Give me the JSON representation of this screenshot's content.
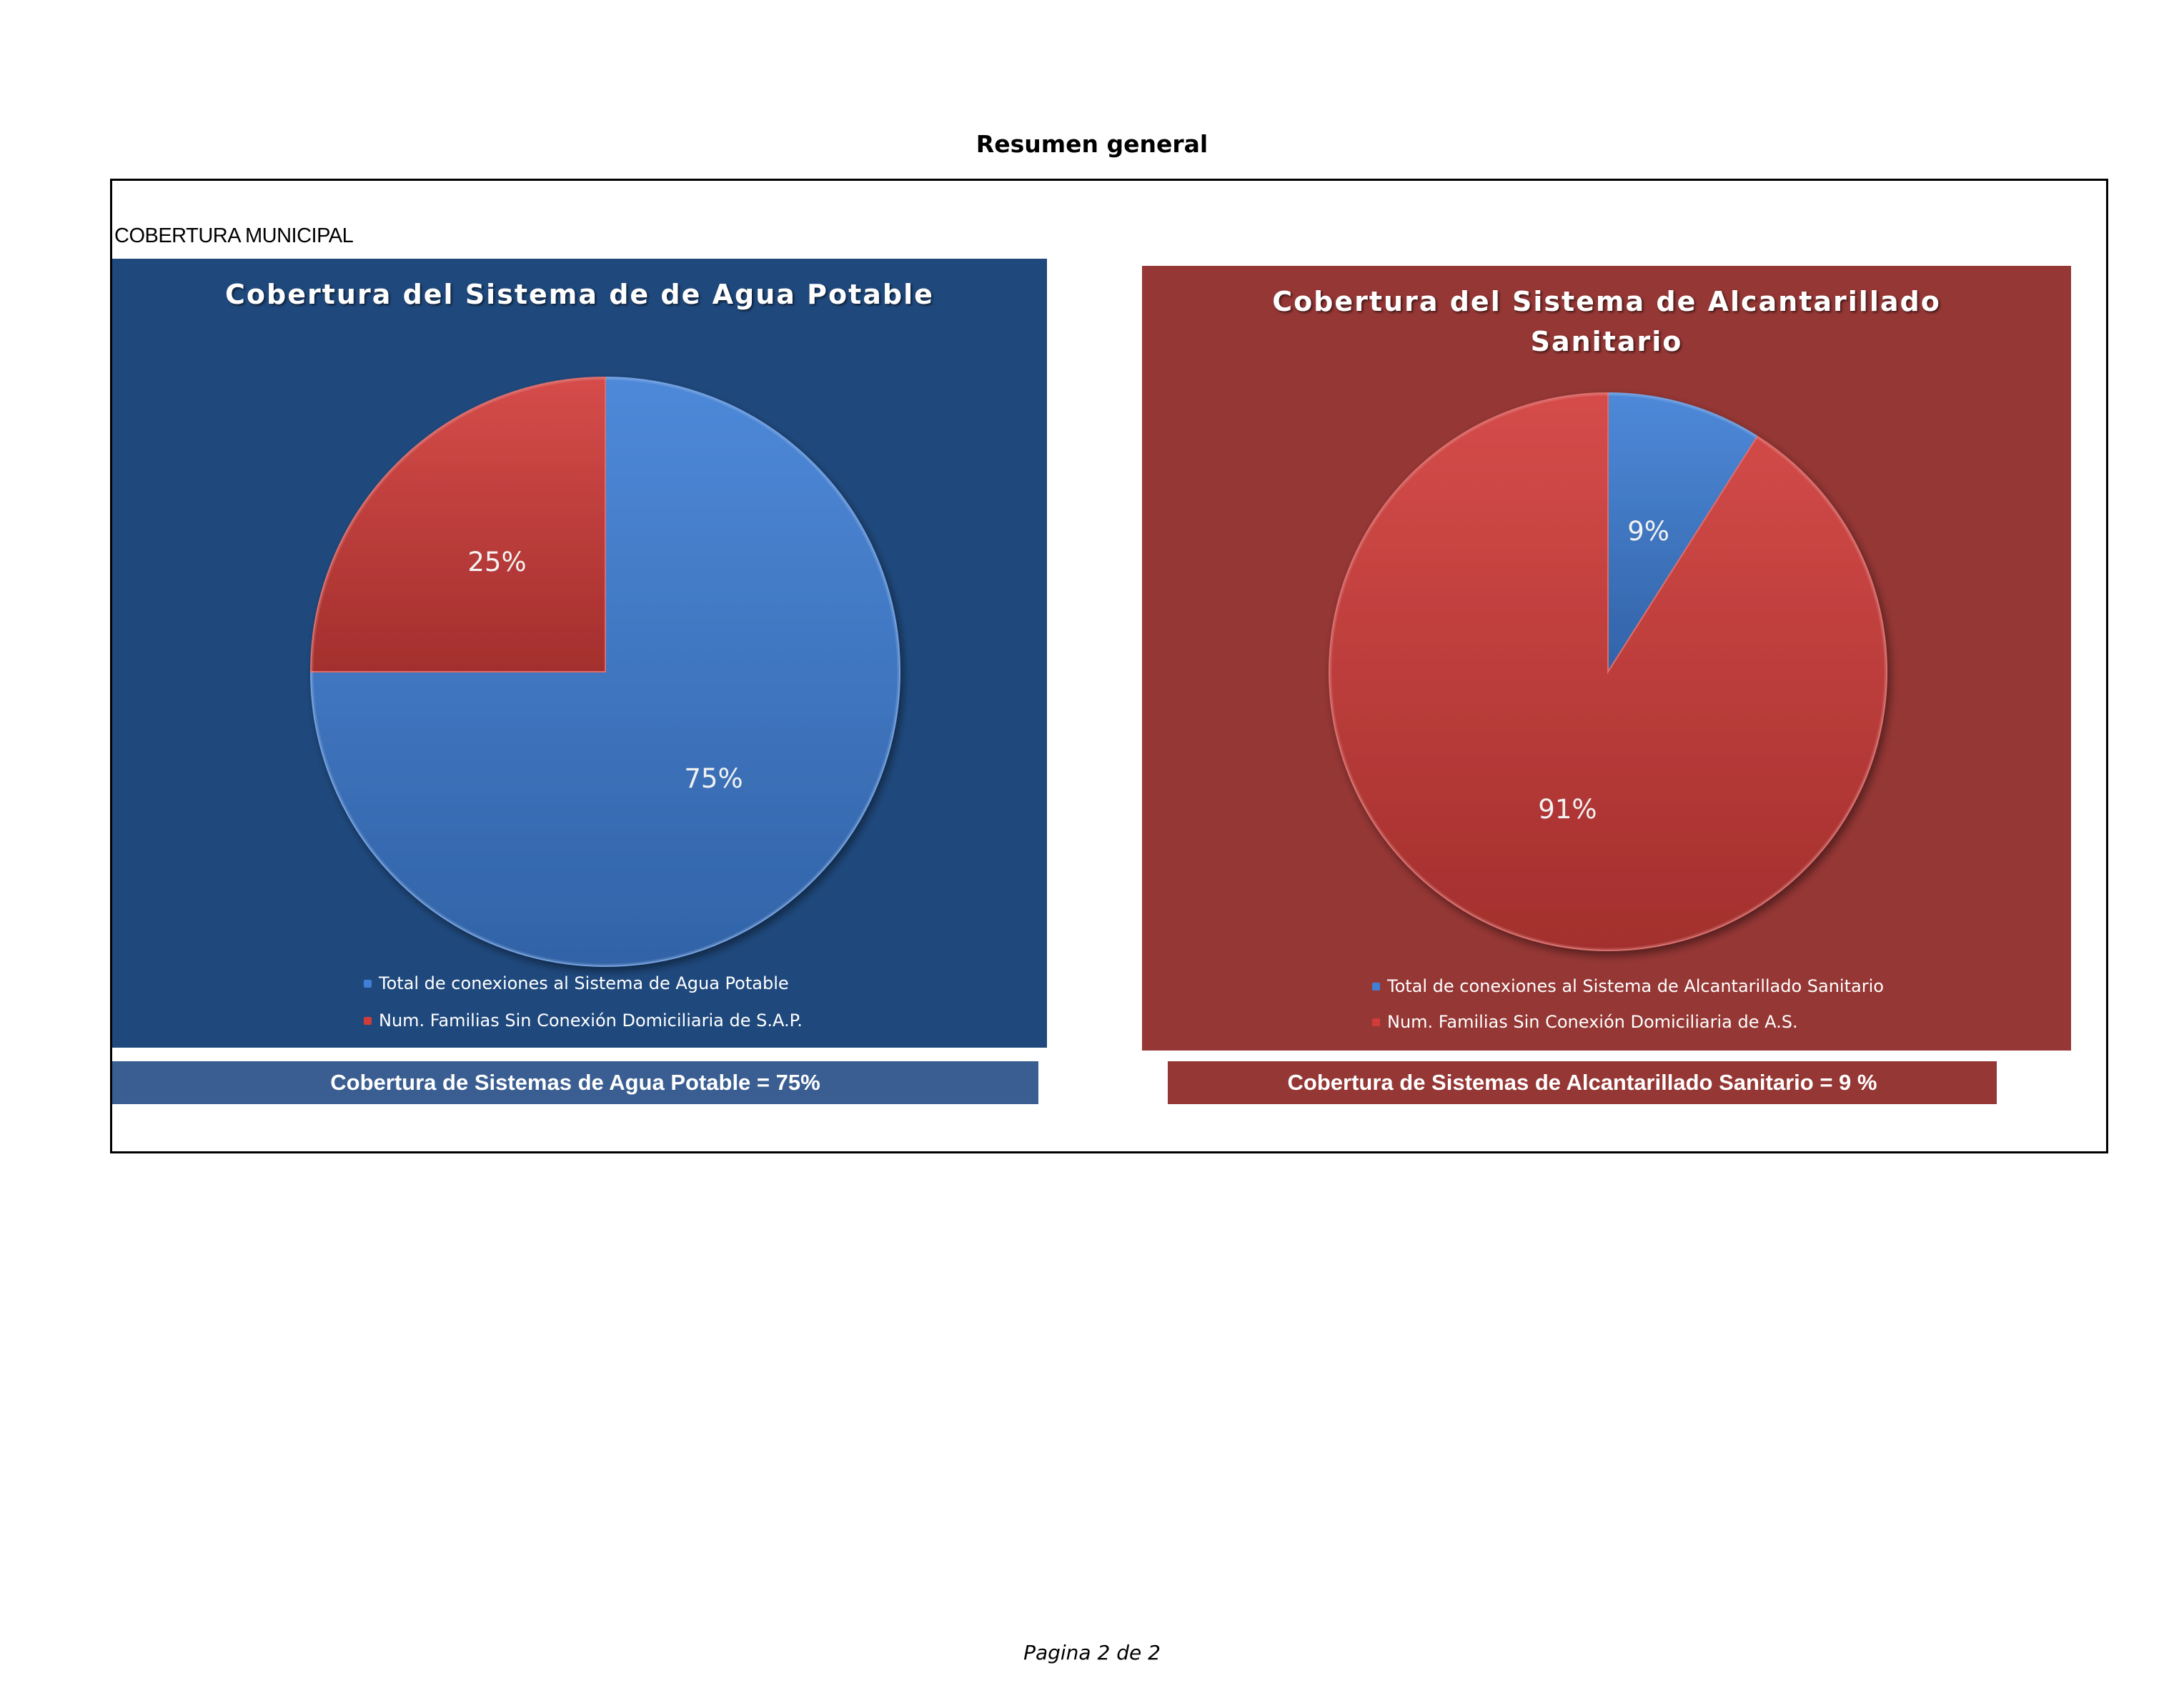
{
  "page_title": "Resumen general",
  "section_label": "COBERTURA MUNICIPAL",
  "footer": "Pagina 2 de 2",
  "colors": {
    "blue_slice": "#3f7fd6",
    "red_slice": "#d13c3a",
    "water_panel": "#1f497d",
    "sewer_panel": "#953735"
  },
  "chart_data": [
    {
      "type": "pie",
      "title": "Cobertura del Sistema de de Agua Potable",
      "slices": [
        {
          "name": "Total de conexiones al Sistema de Agua Potable",
          "value": 75,
          "label": "75%",
          "color": "#3f7fd6"
        },
        {
          "name": "Num.  Familias Sin Conexión Domiciliaria de S.A.P.",
          "value": 25,
          "label": "25%",
          "color": "#d13c3a"
        }
      ],
      "legend_position": "bottom",
      "summary": "Cobertura de Sistemas de Agua Potable = 75%"
    },
    {
      "type": "pie",
      "title_lines": [
        "Cobertura del Sistema de Alcantarillado",
        "Sanitario"
      ],
      "slices": [
        {
          "name": "Total de conexiones al Sistema de Alcantarillado Sanitario",
          "value": 9,
          "label": "9%",
          "color": "#3f7fd6"
        },
        {
          "name": "Num.  Familias Sin Conexión Domiciliaria de A.S.",
          "value": 91,
          "label": "91%",
          "color": "#d13c3a"
        }
      ],
      "legend_position": "bottom",
      "summary": "Cobertura de Sistemas de Alcantarillado Sanitario = 9 %"
    }
  ]
}
